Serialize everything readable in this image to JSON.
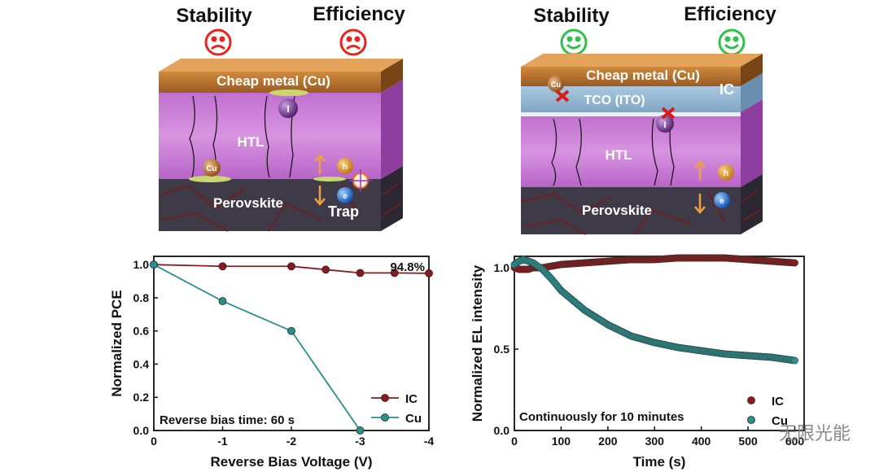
{
  "top": {
    "left": {
      "stability": "Stability",
      "efficiency": "Efficiency",
      "metal": "Cheap metal (Cu)",
      "htl": "HTL",
      "perovskite": "Perovskite",
      "trap": "Trap",
      "cu_ion": "Cu",
      "i_ion": "I",
      "h_plus": "h",
      "e_minus": "e"
    },
    "right": {
      "stability": "Stability",
      "efficiency": "Efficiency",
      "metal": "Cheap metal (Cu)",
      "tco": "TCO (ITO)",
      "ic": "IC",
      "htl": "HTL",
      "perovskite": "Perovskite",
      "cu_ion": "Cu",
      "i_ion": "I",
      "h_plus": "h",
      "e_minus": "e"
    },
    "colors": {
      "sad": "#e8241c",
      "happy": "#2ec24a",
      "metal": "#b5732f",
      "htl": "#c97ad6",
      "perovskite": "#3d3a45",
      "tco": "#9bbdd4"
    }
  },
  "chart_data": [
    {
      "type": "line",
      "xlabel": "Reverse Bias Voltage (V)",
      "ylabel": "Normalized PCE",
      "xlim": [
        0,
        -4
      ],
      "ylim": [
        0,
        1.05
      ],
      "xticks": [
        "0",
        "-1",
        "-2",
        "-3",
        "-4"
      ],
      "yticks": [
        "0.0",
        "0.2",
        "0.4",
        "0.6",
        "0.8",
        "1.0"
      ],
      "annotation": "Reverse bias time: 60 s",
      "value_label": "94.8%",
      "legend_position": "bottom-right",
      "series": [
        {
          "name": "IC",
          "color": "#8b1a1a",
          "x": [
            0,
            -1,
            -2,
            -2.5,
            -3,
            -3.5,
            -4
          ],
          "y": [
            1.0,
            0.99,
            0.99,
            0.97,
            0.95,
            0.95,
            0.948
          ]
        },
        {
          "name": "Cu",
          "color": "#2a8f8f",
          "x": [
            0,
            -1,
            -2,
            -3
          ],
          "y": [
            1.0,
            0.78,
            0.6,
            0.0
          ]
        }
      ]
    },
    {
      "type": "scatter",
      "xlabel": "Time (s)",
      "ylabel": "Normalized EL intensity",
      "xlim": [
        0,
        620
      ],
      "ylim": [
        0,
        1.07
      ],
      "xticks": [
        "0",
        "100",
        "200",
        "300",
        "400",
        "500",
        "600"
      ],
      "yticks": [
        "0.0",
        "0.5",
        "1.0"
      ],
      "annotation": "Continuously for 10 minutes",
      "legend_position": "bottom-right",
      "series": [
        {
          "name": "IC",
          "color": "#8b1a1a",
          "x": [
            0,
            10,
            20,
            30,
            40,
            50,
            60,
            80,
            100,
            150,
            200,
            250,
            300,
            350,
            400,
            450,
            500,
            550,
            600
          ],
          "y": [
            1.0,
            0.99,
            0.99,
            0.99,
            1.0,
            1.0,
            1.0,
            1.01,
            1.02,
            1.03,
            1.04,
            1.05,
            1.05,
            1.06,
            1.06,
            1.06,
            1.05,
            1.04,
            1.03
          ]
        },
        {
          "name": "Cu",
          "color": "#2a8f8f",
          "x": [
            0,
            10,
            20,
            30,
            40,
            50,
            60,
            80,
            100,
            150,
            200,
            250,
            300,
            350,
            400,
            450,
            500,
            550,
            600
          ],
          "y": [
            1.02,
            1.04,
            1.05,
            1.04,
            1.03,
            1.01,
            0.99,
            0.93,
            0.86,
            0.74,
            0.65,
            0.58,
            0.54,
            0.51,
            0.49,
            0.47,
            0.46,
            0.45,
            0.43
          ]
        }
      ]
    }
  ],
  "watermark": "无限光能"
}
